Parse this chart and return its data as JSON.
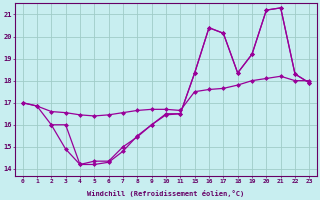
{
  "xlabel": "Windchill (Refroidissement éolien,°C)",
  "bg_color": "#c8eef0",
  "grid_color": "#a0ccc8",
  "line_color": "#990099",
  "spine_color": "#660066",
  "tick_color": "#660066",
  "xlabel_color": "#660066",
  "xlim": [
    -0.5,
    23.5
  ],
  "ylim": [
    13.7,
    21.5
  ],
  "xtick_positions": [
    0,
    1,
    2,
    3,
    4,
    5,
    6,
    7,
    8,
    9,
    10,
    11,
    15,
    16,
    17,
    18,
    19,
    20,
    21,
    22,
    23
  ],
  "xtick_labels": [
    "0",
    "1",
    "2",
    "3",
    "4",
    "5",
    "6",
    "7",
    "8",
    "9",
    "10",
    "11",
    "15",
    "16",
    "17",
    "18",
    "19",
    "20",
    "21",
    "22",
    "23"
  ],
  "ytick_positions": [
    14,
    15,
    16,
    17,
    18,
    19,
    20,
    21
  ],
  "ytick_labels": [
    "14",
    "15",
    "16",
    "17",
    "18",
    "19",
    "20",
    "21"
  ],
  "curve1_x": [
    0,
    1,
    2,
    3,
    4,
    5,
    6,
    7,
    8,
    9,
    10,
    11,
    15,
    16,
    17,
    18,
    19,
    20,
    21,
    22,
    23
  ],
  "curve1_y": [
    17.0,
    16.85,
    16.6,
    16.55,
    16.45,
    16.4,
    16.45,
    16.55,
    16.65,
    16.7,
    16.7,
    16.65,
    17.5,
    17.6,
    17.65,
    17.8,
    18.0,
    18.1,
    18.2,
    18.0,
    18.0
  ],
  "curve2_x": [
    0,
    1,
    2,
    3,
    4,
    5,
    6,
    7,
    8,
    9,
    10,
    11,
    15,
    16,
    17,
    18,
    19,
    20,
    21,
    22,
    23
  ],
  "curve2_y": [
    17.0,
    16.85,
    16.0,
    14.9,
    14.2,
    14.2,
    14.3,
    14.8,
    15.5,
    16.0,
    16.5,
    16.5,
    18.35,
    20.4,
    20.15,
    18.35,
    19.2,
    21.2,
    21.3,
    18.3,
    17.9
  ],
  "curve3_x": [
    2,
    3,
    4,
    5,
    6,
    7,
    8,
    9,
    10,
    11,
    15,
    16,
    17,
    18,
    19,
    20,
    21,
    22,
    23
  ],
  "curve3_y": [
    16.0,
    16.0,
    14.2,
    14.35,
    14.35,
    15.0,
    15.45,
    16.0,
    16.45,
    16.5,
    18.35,
    20.4,
    20.15,
    18.35,
    19.2,
    21.2,
    21.3,
    18.3,
    17.9
  ],
  "markersize": 2.5,
  "linewidth": 0.9
}
